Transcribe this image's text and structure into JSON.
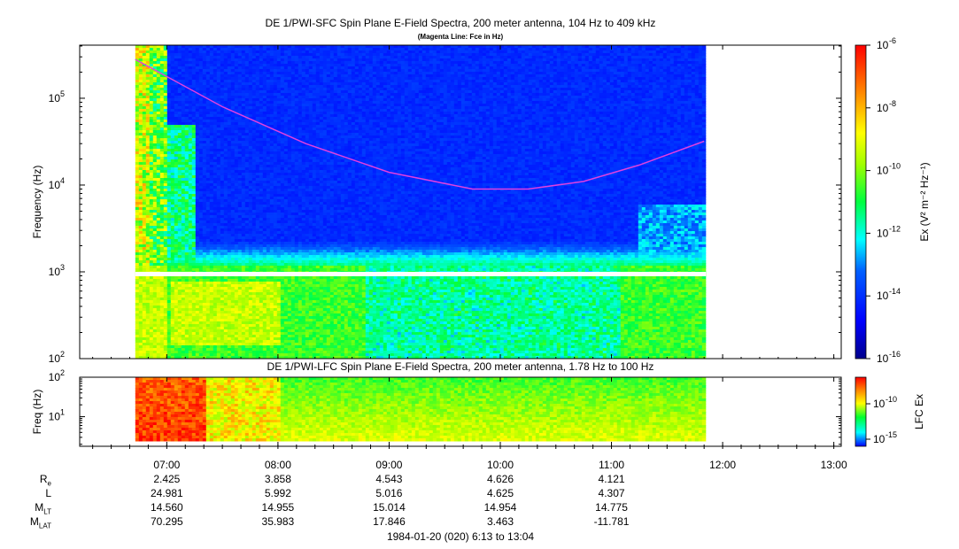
{
  "top_panel": {
    "title": "DE 1/PWI-SFC  Spin Plane E-Field Spectra, 200 meter antenna, 104 Hz to 409 kHz",
    "subtitle": "(Magenta Line: Fce in Hz)",
    "ylabel": "Frequency (Hz)",
    "colorbar_label": "Ex (V² m⁻² Hz⁻¹)"
  },
  "bottom_panel": {
    "title": "DE 1/PWI-LFC  Spin Plane E-Field Spectra, 200 meter antenna, 1.78 Hz to 100 Hz",
    "ylabel": "Freq (Hz)",
    "colorbar_label": "LFC Ex"
  },
  "footer": "1984-01-20 (020) 6:13 to 13:04",
  "ephemeris": {
    "labels": [
      {
        "main": "R",
        "sub": "e"
      },
      {
        "main": "L",
        "sub": ""
      },
      {
        "main": "M",
        "sub": "LT"
      },
      {
        "main": "M",
        "sub": "LAT"
      }
    ],
    "columns": [
      {
        "time": "07:00",
        "values": [
          "2.425",
          "24.981",
          "14.560",
          "70.295"
        ]
      },
      {
        "time": "08:00",
        "values": [
          "3.858",
          "5.992",
          "14.955",
          "35.983"
        ]
      },
      {
        "time": "09:00",
        "values": [
          "4.543",
          "5.016",
          "15.014",
          "17.846"
        ]
      },
      {
        "time": "10:00",
        "values": [
          "4.626",
          "4.625",
          "14.954",
          "3.463"
        ]
      },
      {
        "time": "11:00",
        "values": [
          "4.121",
          "4.307",
          "14.775",
          "-11.781"
        ]
      }
    ]
  },
  "chart_data": [
    {
      "type": "heatmap",
      "title": "DE 1/PWI-SFC  Spin Plane E-Field Spectra, 200 meter antenna, 104 Hz to 409 kHz",
      "subtitle": "(Magenta Line: Fce in Hz)",
      "ylabel": "Frequency (Hz)",
      "yscale": "log",
      "ylim": [
        100,
        409000
      ],
      "xlim": [
        "06:13",
        "13:04"
      ],
      "data_coverage": [
        "06:43",
        "11:50"
      ],
      "x_ticks": [
        "07:00",
        "08:00",
        "09:00",
        "10:00",
        "11:00",
        "12:00",
        "13:00"
      ],
      "y_ticks": [
        {
          "base": "10",
          "exp": "2"
        },
        {
          "base": "10",
          "exp": "3"
        },
        {
          "base": "10",
          "exp": "4"
        },
        {
          "base": "10",
          "exp": "5"
        }
      ],
      "colorbar": {
        "scale": "log",
        "range": [
          1e-16,
          1e-06
        ],
        "tick_labels": [
          {
            "base": "10",
            "exp": "-6"
          },
          {
            "base": "10",
            "exp": "-8"
          },
          {
            "base": "10",
            "exp": "-10"
          },
          {
            "base": "10",
            "exp": "-12"
          },
          {
            "base": "10",
            "exp": "-14"
          },
          {
            "base": "10",
            "exp": "-16"
          }
        ]
      },
      "fce_line": {
        "color": "#e040e0",
        "x": [
          "06:43",
          "07:30",
          "08:15",
          "09:00",
          "09:45",
          "10:15",
          "10:45",
          "11:15",
          "11:50"
        ],
        "y": [
          280000,
          80000,
          30000,
          14000,
          9000,
          9000,
          11000,
          17000,
          32000
        ]
      },
      "gap_band_hz": [
        940,
        1000
      ]
    },
    {
      "type": "heatmap",
      "title": "DE 1/PWI-LFC  Spin Plane E-Field Spectra, 200 meter antenna, 1.78 Hz to 100 Hz",
      "ylabel": "Freq (Hz)",
      "yscale": "log",
      "ylim": [
        1.78,
        100
      ],
      "xlim": [
        "06:13",
        "13:04"
      ],
      "data_coverage": [
        "06:43",
        "11:50"
      ],
      "y_ticks": [
        {
          "base": "10",
          "exp": "1"
        },
        {
          "base": "10",
          "exp": "2"
        }
      ],
      "colorbar": {
        "label": "LFC Ex",
        "tick_labels": [
          {
            "base": "10",
            "exp": "-10"
          },
          {
            "base": "10",
            "exp": "-15"
          }
        ]
      }
    }
  ]
}
